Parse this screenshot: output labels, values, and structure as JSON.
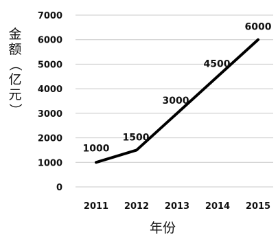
{
  "chart_data": {
    "type": "line",
    "x": [
      "2011",
      "2012",
      "2013",
      "2014",
      "2015"
    ],
    "series": [
      {
        "values": [
          1000,
          1500,
          3000,
          4500,
          6000
        ]
      }
    ],
    "data_labels": [
      "1000",
      "1500",
      "3000",
      "4500",
      "6000"
    ],
    "xlabel": "年份",
    "ylabel": "金额（亿元）",
    "ylabel_chars": [
      "金",
      "额",
      "（",
      "亿",
      "元",
      "）"
    ],
    "yticks": [
      "0",
      "1000",
      "2000",
      "3000",
      "4000",
      "5000",
      "6000",
      "7000"
    ],
    "ylim": [
      0,
      7000
    ],
    "grid": "horizontal",
    "line_color": "#000000",
    "grid_color": "#c8c8c8"
  }
}
